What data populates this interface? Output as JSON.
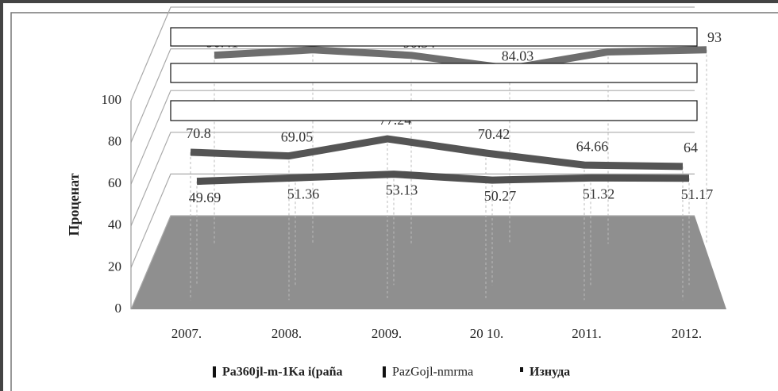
{
  "chart_data": {
    "type": "line",
    "y_label": "Проценат",
    "categories": [
      "2007.",
      "2008.",
      "2009.",
      "20 10.",
      "2011.",
      "2012."
    ],
    "series": [
      {
        "name": "Pa360jl-m-1Ka i(paña",
        "color": "#6e6e6e",
        "values": [
          90.41,
          93,
          90.34,
          84.03,
          92,
          93
        ]
      },
      {
        "name": "PazGojl-nmrma",
        "color": "#555555",
        "values": [
          70.8,
          69.05,
          77.24,
          70.42,
          64.66,
          64.0
        ]
      },
      {
        "name": "Изнуда",
        "color": "#505050",
        "values": [
          49.69,
          51.36,
          53.13,
          50.27,
          51.32,
          51.17
        ]
      }
    ],
    "ylim": [
      0,
      100
    ],
    "yticks": [
      0,
      20,
      40,
      60,
      80,
      100
    ],
    "grid": true
  }
}
